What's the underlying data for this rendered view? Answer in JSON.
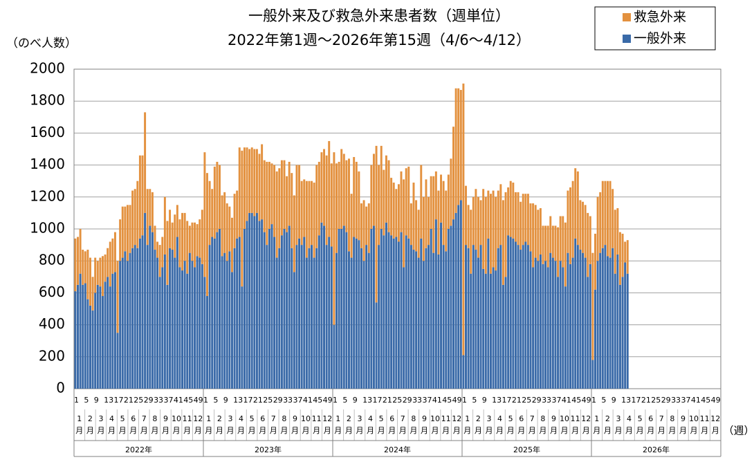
{
  "chart_data": {
    "type": "stacked_bar",
    "title": "一般外来及び救急外来患者数（週単位）",
    "subtitle": "2022年第1週～2026年第15週（4/6～4/12）",
    "y_label": "（のべ人数）",
    "x_label": "（週）",
    "ylim": [
      0,
      2000
    ],
    "yticks": [
      0,
      200,
      400,
      600,
      800,
      1000,
      1200,
      1400,
      1600,
      1800,
      2000
    ],
    "grid": true,
    "legend": "top-right",
    "years": [
      "2022年",
      "2023年",
      "2024年",
      "2025年",
      "2026年"
    ],
    "months": [
      "1月",
      "2月",
      "3月",
      "4月",
      "5月",
      "6月",
      "7月",
      "8月",
      "9月",
      "10月",
      "11月",
      "12月"
    ],
    "categories": [
      "1",
      null,
      null,
      null,
      "5",
      null,
      null,
      null,
      "9",
      null,
      null,
      null,
      "13",
      null,
      null,
      null,
      "17",
      null,
      null,
      null,
      "21",
      null,
      null,
      null,
      "25",
      null,
      null,
      null,
      "29",
      null,
      null,
      null,
      "33",
      null,
      null,
      null,
      "37",
      null,
      null,
      null,
      "41",
      null,
      null,
      null,
      "45",
      null,
      null,
      null,
      "49",
      null,
      null,
      null,
      "1",
      null,
      null,
      null,
      "5",
      null,
      null,
      null,
      "9",
      null,
      null,
      null,
      "13",
      null,
      null,
      null,
      "17",
      null,
      null,
      null,
      "21",
      null,
      null,
      null,
      "25",
      null,
      null,
      null,
      "29",
      null,
      null,
      null,
      "33",
      null,
      null,
      null,
      "37",
      null,
      null,
      null,
      "41",
      null,
      null,
      null,
      "45",
      null,
      null,
      null,
      "49",
      null,
      null,
      null,
      "1",
      null,
      null,
      null,
      "5",
      null,
      null,
      null,
      "9",
      null,
      null,
      null,
      "13",
      null,
      null,
      null,
      "17",
      null,
      null,
      null,
      "21",
      null,
      null,
      null,
      "25",
      null,
      null,
      null,
      "29",
      null,
      null,
      null,
      "33",
      null,
      null,
      null,
      "37",
      null,
      null,
      null,
      "41",
      null,
      null,
      null,
      "45",
      null,
      null,
      null,
      "49",
      null,
      null,
      null,
      "1",
      null,
      null,
      null,
      "5",
      null,
      null,
      null,
      "9",
      null,
      null,
      null,
      "13",
      null,
      null,
      null,
      "17",
      null,
      null,
      null,
      "21",
      null,
      null,
      null,
      "25",
      null,
      null,
      null,
      "29",
      null,
      null,
      null,
      "33",
      null,
      null,
      null,
      "37",
      null,
      null,
      null,
      "41",
      null,
      null,
      null,
      "45",
      null,
      null,
      null,
      "49",
      null,
      null,
      null,
      "1",
      null,
      null,
      null,
      "5",
      null,
      null,
      null,
      "9",
      null,
      null,
      null,
      "13",
      null,
      null,
      null,
      "17",
      null,
      null,
      null,
      "21",
      null,
      null,
      null,
      "25",
      null,
      null,
      null,
      "29",
      null,
      null,
      null,
      "33",
      null,
      null,
      null,
      "37",
      null,
      null,
      null,
      "41",
      null,
      null,
      null,
      "45",
      null,
      null,
      null,
      "49",
      null,
      null,
      null
    ],
    "series": [
      {
        "name": "一般外来",
        "color": "#3a6aa8",
        "values": [
          610,
          650,
          720,
          650,
          660,
          560,
          520,
          490,
          600,
          650,
          640,
          580,
          670,
          700,
          640,
          720,
          730,
          350,
          800,
          820,
          860,
          800,
          850,
          880,
          900,
          880,
          940,
          960,
          1100,
          900,
          1020,
          980,
          870,
          820,
          700,
          760,
          840,
          650,
          880,
          870,
          820,
          950,
          760,
          740,
          800,
          720,
          850,
          800,
          760,
          830,
          820,
          780,
          700,
          580,
          900,
          950,
          940,
          980,
          1000,
          830,
          850,
          800,
          860,
          730,
          880,
          940,
          950,
          640,
          1000,
          1050,
          1100,
          1100,
          1080,
          1100,
          1050,
          1060,
          980,
          900,
          1000,
          1030,
          950,
          820,
          880,
          960,
          1000,
          980,
          1020,
          880,
          730,
          900,
          940,
          900,
          950,
          820,
          880,
          900,
          820,
          880,
          960,
          1040,
          1020,
          900,
          950,
          890,
          400,
          850,
          1000,
          1000,
          1020,
          980,
          860,
          820,
          950,
          940,
          930,
          880,
          800,
          900,
          850,
          1000,
          1020,
          540,
          900,
          1000,
          960,
          1040,
          980,
          960,
          940,
          950,
          920,
          980,
          760,
          960,
          940,
          900,
          870,
          860,
          820,
          940,
          800,
          880,
          900,
          1000,
          850,
          1060,
          840,
          1040,
          900,
          860,
          1000,
          1020,
          1060,
          1100,
          1150,
          1180,
          210,
          900,
          880,
          720,
          900,
          870,
          820,
          900,
          750,
          720,
          940,
          720,
          760,
          740,
          880,
          900,
          650,
          700,
          960,
          950,
          940,
          920,
          900,
          870,
          900,
          920,
          900,
          860,
          760,
          820,
          800,
          840,
          780,
          800,
          760,
          850,
          820,
          800,
          700,
          800,
          760,
          640,
          850,
          780,
          820,
          940,
          900,
          870,
          850,
          820,
          700,
          780,
          180,
          620,
          800,
          850,
          880,
          900,
          830,
          820,
          880,
          720,
          840,
          650,
          700,
          790,
          720,
          null,
          null,
          null,
          null,
          null,
          null,
          null,
          null,
          null,
          null,
          null,
          null,
          null,
          null,
          null,
          null,
          null,
          null,
          null,
          null,
          null,
          null,
          null,
          null,
          null,
          null,
          null,
          null,
          null,
          null,
          null,
          null,
          null,
          null,
          null,
          null,
          null
        ]
      },
      {
        "name": "救急外来",
        "color": "#e3913f",
        "values": [
          330,
          300,
          280,
          220,
          200,
          310,
          300,
          210,
          220,
          150,
          180,
          250,
          170,
          180,
          280,
          220,
          250,
          450,
          260,
          320,
          280,
          350,
          300,
          360,
          350,
          420,
          520,
          500,
          630,
          350,
          230,
          250,
          150,
          100,
          200,
          190,
          360,
          400,
          240,
          170,
          270,
          200,
          300,
          360,
          300,
          330,
          170,
          240,
          280,
          200,
          240,
          340,
          780,
          770,
          400,
          300,
          450,
          440,
          400,
          380,
          380,
          360,
          280,
          340,
          340,
          300,
          560,
          850,
          510,
          460,
          400,
          410,
          420,
          400,
          420,
          470,
          450,
          520,
          420,
          380,
          450,
          540,
          500,
          470,
          430,
          350,
          400,
          470,
          480,
          500,
          460,
          400,
          360,
          480,
          420,
          400,
          470,
          520,
          460,
          440,
          480,
          560,
          600,
          520,
          1080,
          560,
          420,
          500,
          450,
          450,
          580,
          400,
          500,
          480,
          430,
          280,
          380,
          240,
          310,
          400,
          450,
          980,
          500,
          520,
          410,
          420,
          450,
          360,
          350,
          300,
          360,
          380,
          550,
          420,
          450,
          260,
          420,
          320,
          300,
          460,
          400,
          430,
          300,
          330,
          480,
          300,
          400,
          300,
          400,
          380,
          340,
          420,
          580,
          780,
          730,
          690,
          1700,
          370,
          270,
          400,
          300,
          380,
          380,
          280,
          500,
          480,
          300,
          500,
          480,
          460,
          360,
          380,
          530,
          530,
          300,
          350,
          350,
          310,
          330,
          300,
          320,
          300,
          320,
          300,
          400,
          330,
          320,
          290,
          240,
          220,
          260,
          230,
          200,
          220,
          310,
          280,
          320,
          400,
          390,
          480,
          480,
          440,
          460,
          310,
          320,
          330,
          400,
          300,
          670,
          350,
          400,
          380,
          420,
          400,
          470,
          480,
          370,
          400,
          290,
          330,
          270,
          130,
          210,
          null,
          null,
          null,
          null,
          null,
          null,
          null,
          null,
          null,
          null,
          null,
          null,
          null,
          null,
          null,
          null,
          null,
          null,
          null,
          null,
          null,
          null,
          null,
          null,
          null,
          null,
          null,
          null,
          null,
          null,
          null,
          null,
          null,
          null,
          null,
          null,
          null
        ]
      }
    ]
  }
}
